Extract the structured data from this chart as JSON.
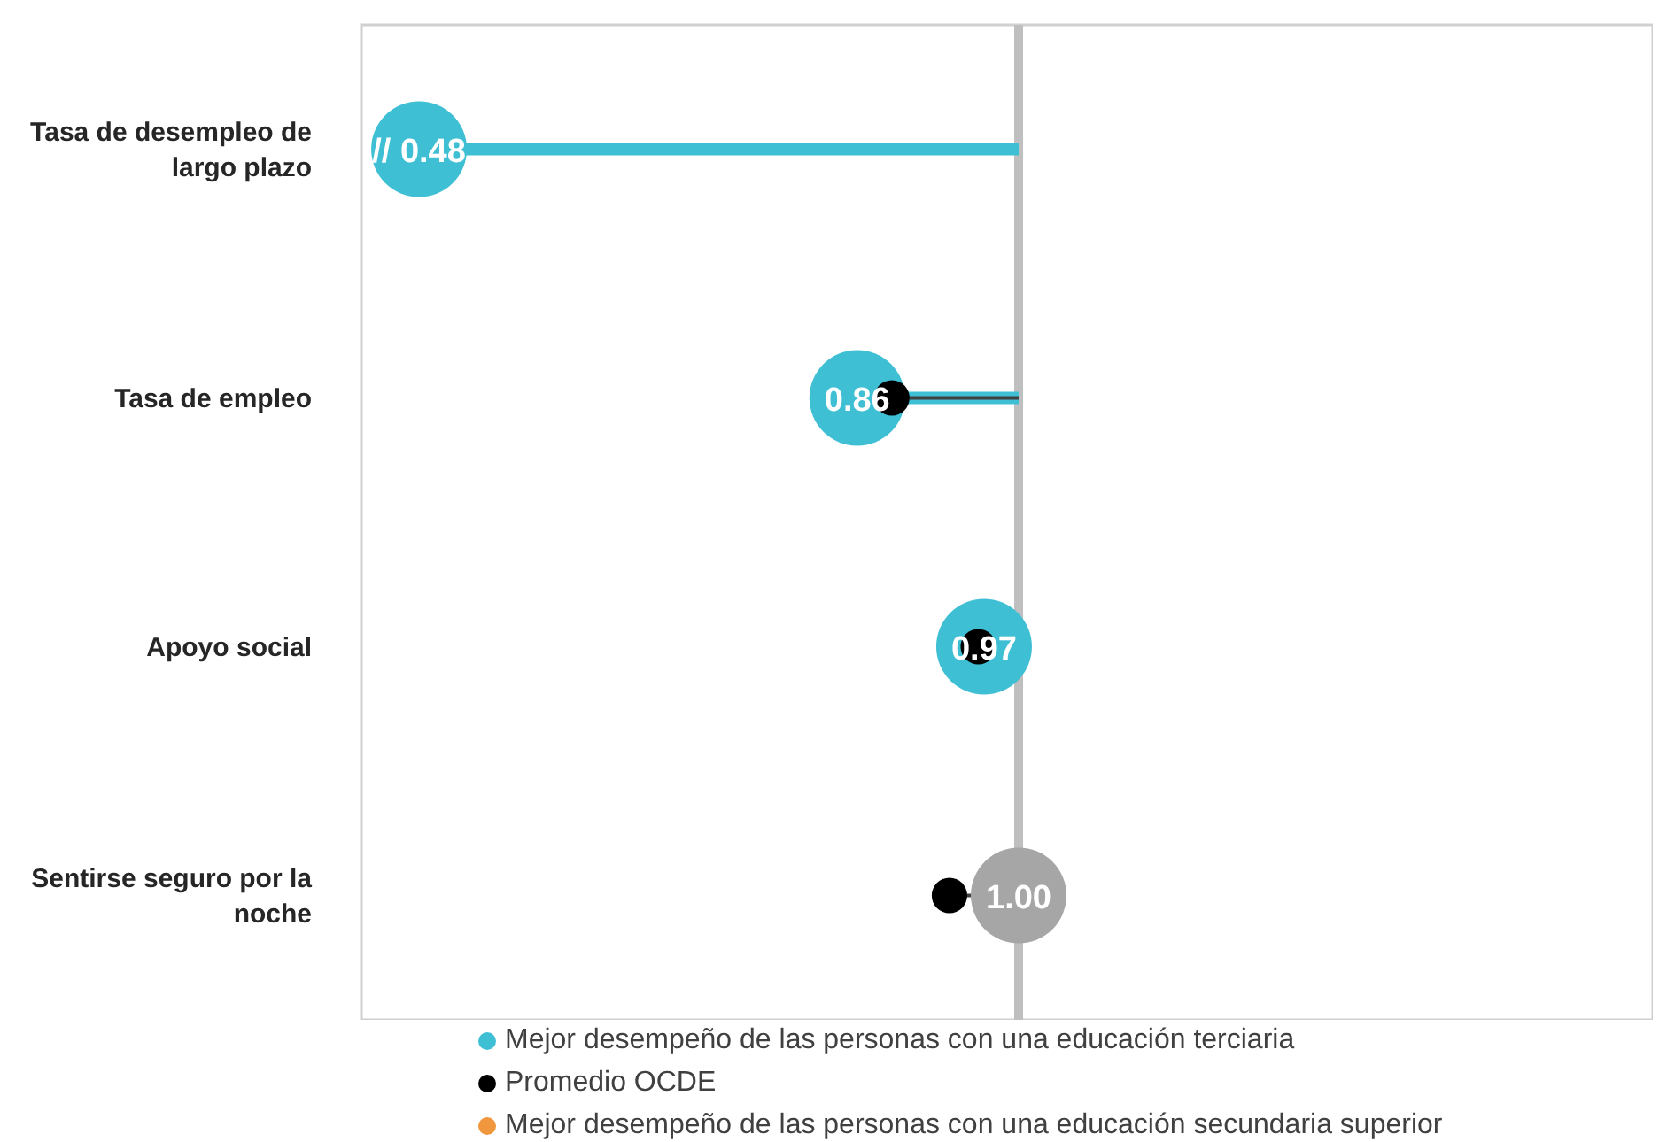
{
  "chart_data": {
    "type": "lollipop",
    "orientation": "horizontal",
    "categories": [
      "Tasa de desempleo de largo plazo",
      "Tasa de empleo",
      "Apoyo social",
      "Sentirse seguro por la noche"
    ],
    "xlim": [
      0.43,
      1.55
    ],
    "legend": "bottom",
    "marker": "circle",
    "ref_lines": [
      {
        "axis": "x",
        "value": 1,
        "color": "#bfbfbf"
      }
    ],
    "series": [
      {
        "name": "Mejor desempeño de las personas con una educación terciaria",
        "color": "#3fbfd4",
        "colors": [
          "#3fbfd4",
          "#3fbfd4",
          "#3fbfd4",
          "#a6a6a6"
        ],
        "values": [
          0.48,
          0.86,
          0.97,
          1.0
        ],
        "value_labels": [
          "// 0.48",
          "0.86",
          "0.97",
          "1.00"
        ]
      },
      {
        "name": "Promedio OCDE",
        "color": "#000000",
        "values": [
          null,
          0.89,
          0.965,
          0.94
        ]
      },
      {
        "name": "Mejor desempeño de las personas con una educación secundaria superior",
        "color": "#f0963c",
        "values": [
          null,
          null,
          null,
          null
        ]
      }
    ]
  }
}
